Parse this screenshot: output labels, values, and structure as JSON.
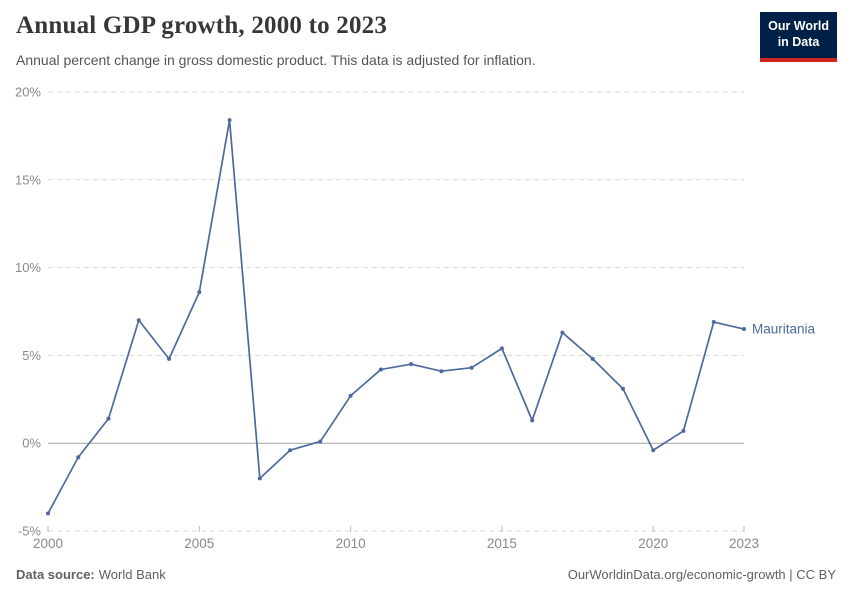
{
  "header": {
    "title": "Annual GDP growth, 2000 to 2023",
    "subtitle": "Annual percent change in gross domestic product. This data is adjusted for inflation.",
    "logo": {
      "line1": "Our World",
      "line2": "in Data"
    }
  },
  "chart_data": {
    "type": "line",
    "title": "Annual GDP growth, 2000 to 2023",
    "xlabel": "",
    "ylabel": "",
    "xlim": [
      2000,
      2023
    ],
    "ylim": [
      -5,
      20
    ],
    "x_ticks": [
      2000,
      2005,
      2010,
      2015,
      2020,
      2023
    ],
    "y_ticks": [
      -5,
      0,
      5,
      10,
      15,
      20
    ],
    "y_tick_suffix": "%",
    "grid": "horizontal dashed gridlines, solid zero line",
    "legend_position": "end-of-line label",
    "series": [
      {
        "name": "Mauritania",
        "color": "#4C6A9C",
        "x": [
          2000,
          2001,
          2002,
          2003,
          2004,
          2005,
          2006,
          2007,
          2008,
          2009,
          2010,
          2011,
          2012,
          2013,
          2014,
          2015,
          2016,
          2017,
          2018,
          2019,
          2020,
          2021,
          2022,
          2023
        ],
        "values": [
          -4.0,
          -0.8,
          1.4,
          7.0,
          4.8,
          8.6,
          18.4,
          -2.0,
          -0.4,
          0.1,
          2.7,
          4.2,
          4.5,
          4.1,
          4.3,
          5.4,
          1.3,
          6.3,
          4.8,
          3.1,
          -0.4,
          0.7,
          6.9,
          6.5
        ]
      }
    ]
  },
  "footer": {
    "source_label": "Data source:",
    "source_value": "World Bank",
    "attribution": "OurWorldinData.org/economic-growth | CC BY"
  },
  "colors": {
    "line": "#4C6A9C",
    "grid": "#d9d9d9",
    "zero_line": "#a3a3a3",
    "tick": "#bdbdbd",
    "axis_text": "#8a8a8a",
    "title": "#373737",
    "subtitle": "#555555",
    "footer": "#616161",
    "logo_bg": "#002147",
    "logo_red": "#cf2420"
  }
}
